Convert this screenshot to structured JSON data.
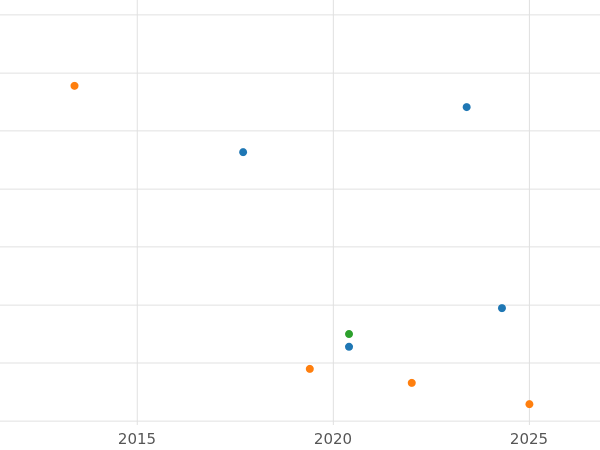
{
  "chart_data": {
    "type": "scatter",
    "title": "",
    "xlabel": "",
    "ylabel": "",
    "grid": true,
    "legend": "none",
    "xlim": [
      2011.5,
      2026.8
    ],
    "ylim": [
      0,
      100
    ],
    "x_ticks": [
      {
        "value": 2015,
        "label": "2015"
      },
      {
        "value": 2020,
        "label": "2020"
      },
      {
        "value": 2025,
        "label": "2025"
      }
    ],
    "y_grid_values": [
      0.9,
      14.6,
      28.2,
      41.9,
      55.5,
      69.2,
      82.8,
      96.5
    ],
    "series": [
      {
        "name": "blue",
        "color": "#1f77b4",
        "points": [
          [
            2017.7,
            64.2
          ],
          [
            2020.4,
            18.4
          ],
          [
            2023.4,
            74.8
          ],
          [
            2024.3,
            27.5
          ]
        ]
      },
      {
        "name": "orange",
        "color": "#ff7f0e",
        "points": [
          [
            2013.4,
            79.8
          ],
          [
            2019.4,
            13.2
          ],
          [
            2022.0,
            9.9
          ],
          [
            2025.0,
            4.9
          ]
        ]
      },
      {
        "name": "green",
        "color": "#2ca02c",
        "points": [
          [
            2020.4,
            21.4
          ]
        ]
      }
    ]
  },
  "colors": {
    "background": "#ffffff",
    "grid": "#e0e0e0",
    "tick_label": "#555555"
  }
}
